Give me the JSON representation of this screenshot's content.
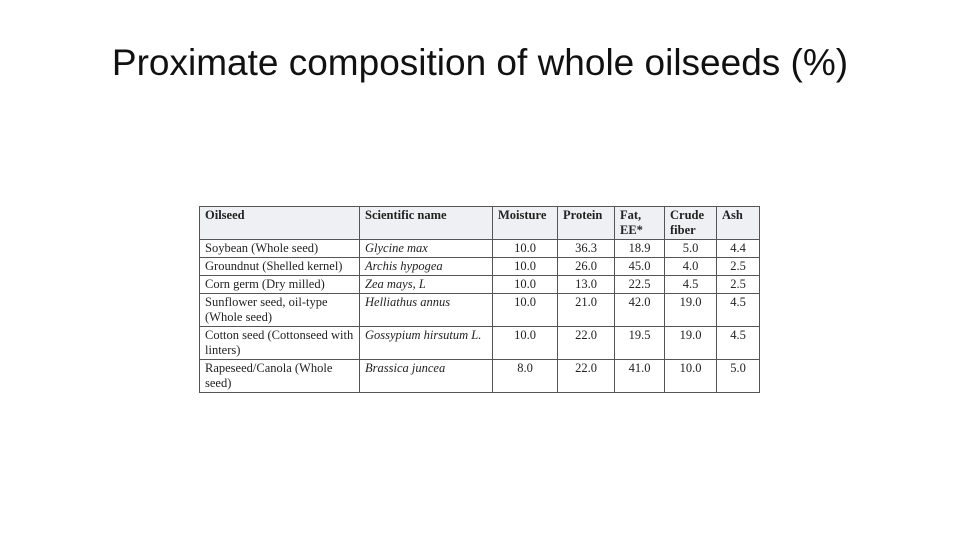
{
  "title": "Proximate composition of whole oilseeds (%)",
  "table": {
    "header": [
      "Oilseed",
      "Scientific name",
      "Moisture",
      "Protein",
      "Fat, EE*",
      "Crude fiber",
      "Ash"
    ],
    "rows": [
      [
        "Soybean (Whole seed)",
        "Glycine max",
        "10.0",
        "36.3",
        "18.9",
        "5.0",
        "4.4"
      ],
      [
        "Groundnut (Shelled kernel)",
        "Archis hypogea",
        "10.0",
        "26.0",
        "45.0",
        "4.0",
        "2.5"
      ],
      [
        "Corn germ (Dry milled)",
        "Zea mays, L",
        "10.0",
        "13.0",
        "22.5",
        "4.5",
        "2.5"
      ],
      [
        "Sunflower seed, oil-type (Whole seed)",
        "Helliathus annus",
        "10.0",
        "21.0",
        "42.0",
        "19.0",
        "4.5"
      ],
      [
        "Cotton seed (Cottonseed with linters)",
        "Gossypium hirsutum L.",
        "10.0",
        "22.0",
        "19.5",
        "19.0",
        "4.5"
      ],
      [
        "Rapeseed/Canola (Whole seed)",
        "Brassica juncea",
        "8.0",
        "22.0",
        "41.0",
        "10.0",
        "5.0"
      ]
    ]
  }
}
